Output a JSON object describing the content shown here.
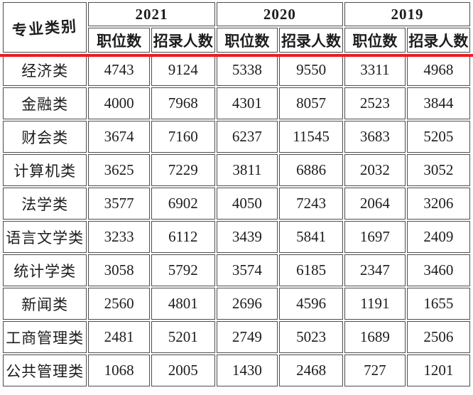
{
  "accent_color": "#ed1c24",
  "chart_data": {
    "type": "table",
    "title": "",
    "header": {
      "category": "专业类别",
      "years": [
        "2021",
        "2020",
        "2019"
      ],
      "subcols": [
        "职位数",
        "招录人数"
      ]
    },
    "columns": [
      "专业类别",
      "2021 职位数",
      "2021 招录人数",
      "2020 职位数",
      "2020 招录人数",
      "2019 职位数",
      "2019 招录人数"
    ],
    "rows": [
      {
        "category": "经济类",
        "values": [
          4743,
          9124,
          5338,
          9550,
          3311,
          4968
        ]
      },
      {
        "category": "金融类",
        "values": [
          4000,
          7968,
          4301,
          8057,
          2523,
          3844
        ]
      },
      {
        "category": "财会类",
        "values": [
          3674,
          7160,
          6237,
          11545,
          3683,
          5205
        ]
      },
      {
        "category": "计算机类",
        "values": [
          3625,
          7229,
          3811,
          6886,
          2032,
          3052
        ]
      },
      {
        "category": "法学类",
        "values": [
          3577,
          6902,
          4050,
          7243,
          2064,
          3206
        ]
      },
      {
        "category": "语言文学类",
        "values": [
          3233,
          6112,
          3439,
          5841,
          1697,
          2409
        ]
      },
      {
        "category": "统计学类",
        "values": [
          3058,
          5792,
          3574,
          6185,
          2347,
          3460
        ]
      },
      {
        "category": "新闻类",
        "values": [
          2560,
          4801,
          2696,
          4596,
          1191,
          1655
        ]
      },
      {
        "category": "工商管理类",
        "values": [
          2481,
          5201,
          2749,
          5023,
          1689,
          2506
        ]
      },
      {
        "category": "公共管理类",
        "values": [
          1068,
          2005,
          1430,
          2468,
          727,
          1201
        ]
      }
    ]
  }
}
